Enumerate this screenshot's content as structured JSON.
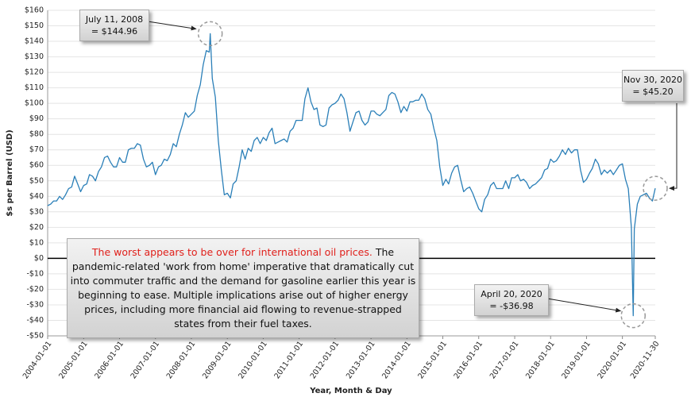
{
  "chart_data": {
    "type": "line",
    "y_label": "$s per Barrel (USD)",
    "x_label": "Year, Month & Day",
    "color": "#2a7fb8",
    "grid": true,
    "xlim": [
      "2004-01-01",
      "2020-11-30"
    ],
    "xticks": [
      "2004-01-01",
      "2005-01-01",
      "2006-01-01",
      "2007-01-01",
      "2008-01-01",
      "2009-01-01",
      "2010-01-01",
      "2011-01-01",
      "2012-01-01",
      "2013-01-01",
      "2014-01-01",
      "2015-01-01",
      "2016-01-01",
      "2017-01-01",
      "2018-01-01",
      "2019-01-01",
      "2020-01-01",
      "2020-11-30"
    ],
    "ylim": [
      -50,
      160
    ],
    "yticks": [
      {
        "value": 160,
        "label": "$160"
      },
      {
        "value": 150,
        "label": "$150"
      },
      {
        "value": 140,
        "label": "$140"
      },
      {
        "value": 130,
        "label": "$130"
      },
      {
        "value": 120,
        "label": "$120"
      },
      {
        "value": 110,
        "label": "$110"
      },
      {
        "value": 100,
        "label": "$100"
      },
      {
        "value": 90,
        "label": "$90"
      },
      {
        "value": 80,
        "label": "$80"
      },
      {
        "value": 70,
        "label": "$70"
      },
      {
        "value": 60,
        "label": "$60"
      },
      {
        "value": 50,
        "label": "$50"
      },
      {
        "value": 40,
        "label": "$40"
      },
      {
        "value": 30,
        "label": "$30"
      },
      {
        "value": 20,
        "label": "$20"
      },
      {
        "value": 10,
        "label": "$10"
      },
      {
        "value": 0,
        "label": "$0"
      },
      {
        "value": -10,
        "label": "-$10"
      },
      {
        "value": -20,
        "label": "-$20"
      },
      {
        "value": -30,
        "label": "-$30"
      },
      {
        "value": -40,
        "label": "-$40"
      },
      {
        "value": -50,
        "label": "-$50"
      }
    ],
    "x": [
      "2004-01-01",
      "2004-02-01",
      "2004-03-01",
      "2004-04-01",
      "2004-05-01",
      "2004-06-01",
      "2004-07-01",
      "2004-08-01",
      "2004-09-01",
      "2004-10-01",
      "2004-11-01",
      "2004-12-01",
      "2005-01-01",
      "2005-02-01",
      "2005-03-01",
      "2005-04-01",
      "2005-05-01",
      "2005-06-01",
      "2005-07-01",
      "2005-08-01",
      "2005-09-01",
      "2005-10-01",
      "2005-11-01",
      "2005-12-01",
      "2006-01-01",
      "2006-02-01",
      "2006-03-01",
      "2006-04-01",
      "2006-05-01",
      "2006-06-01",
      "2006-07-01",
      "2006-08-01",
      "2006-09-01",
      "2006-10-01",
      "2006-11-01",
      "2006-12-01",
      "2007-01-01",
      "2007-02-01",
      "2007-03-01",
      "2007-04-01",
      "2007-05-01",
      "2007-06-01",
      "2007-07-01",
      "2007-08-01",
      "2007-09-01",
      "2007-10-01",
      "2007-11-01",
      "2007-12-01",
      "2008-01-01",
      "2008-02-01",
      "2008-03-01",
      "2008-04-01",
      "2008-05-01",
      "2008-06-01",
      "2008-07-01",
      "2008-07-11",
      "2008-08-01",
      "2008-09-01",
      "2008-10-01",
      "2008-11-01",
      "2008-12-01",
      "2009-01-01",
      "2009-02-01",
      "2009-03-01",
      "2009-04-01",
      "2009-05-01",
      "2009-06-01",
      "2009-07-01",
      "2009-08-01",
      "2009-09-01",
      "2009-10-01",
      "2009-11-01",
      "2009-12-01",
      "2010-01-01",
      "2010-02-01",
      "2010-03-01",
      "2010-04-01",
      "2010-05-01",
      "2010-06-01",
      "2010-07-01",
      "2010-08-01",
      "2010-09-01",
      "2010-10-01",
      "2010-11-01",
      "2010-12-01",
      "2011-01-01",
      "2011-02-01",
      "2011-03-01",
      "2011-04-01",
      "2011-05-01",
      "2011-06-01",
      "2011-07-01",
      "2011-08-01",
      "2011-09-01",
      "2011-10-01",
      "2011-11-01",
      "2011-12-01",
      "2012-01-01",
      "2012-02-01",
      "2012-03-01",
      "2012-04-01",
      "2012-05-01",
      "2012-06-01",
      "2012-07-01",
      "2012-08-01",
      "2012-09-01",
      "2012-10-01",
      "2012-11-01",
      "2012-12-01",
      "2013-01-01",
      "2013-02-01",
      "2013-03-01",
      "2013-04-01",
      "2013-05-01",
      "2013-06-01",
      "2013-07-01",
      "2013-08-01",
      "2013-09-01",
      "2013-10-01",
      "2013-11-01",
      "2013-12-01",
      "2014-01-01",
      "2014-02-01",
      "2014-03-01",
      "2014-04-01",
      "2014-05-01",
      "2014-06-01",
      "2014-07-01",
      "2014-08-01",
      "2014-09-01",
      "2014-10-01",
      "2014-11-01",
      "2014-12-01",
      "2015-01-01",
      "2015-02-01",
      "2015-03-01",
      "2015-04-01",
      "2015-05-01",
      "2015-06-01",
      "2015-07-01",
      "2015-08-01",
      "2015-09-01",
      "2015-10-01",
      "2015-11-01",
      "2015-12-01",
      "2016-01-01",
      "2016-02-01",
      "2016-03-01",
      "2016-04-01",
      "2016-05-01",
      "2016-06-01",
      "2016-07-01",
      "2016-08-01",
      "2016-09-01",
      "2016-10-01",
      "2016-11-01",
      "2016-12-01",
      "2017-01-01",
      "2017-02-01",
      "2017-03-01",
      "2017-04-01",
      "2017-05-01",
      "2017-06-01",
      "2017-07-01",
      "2017-08-01",
      "2017-09-01",
      "2017-10-01",
      "2017-11-01",
      "2017-12-01",
      "2018-01-01",
      "2018-02-01",
      "2018-03-01",
      "2018-04-01",
      "2018-05-01",
      "2018-06-01",
      "2018-07-01",
      "2018-08-01",
      "2018-09-01",
      "2018-10-01",
      "2018-11-01",
      "2018-12-01",
      "2019-01-01",
      "2019-02-01",
      "2019-03-01",
      "2019-04-01",
      "2019-05-01",
      "2019-06-01",
      "2019-07-01",
      "2019-08-01",
      "2019-09-01",
      "2019-10-01",
      "2019-11-01",
      "2019-12-01",
      "2020-01-01",
      "2020-02-01",
      "2020-03-01",
      "2020-04-01",
      "2020-04-20",
      "2020-05-01",
      "2020-06-01",
      "2020-07-01",
      "2020-08-01",
      "2020-09-01",
      "2020-10-01",
      "2020-11-01",
      "2020-11-30"
    ],
    "values": [
      34,
      35,
      37,
      37,
      40,
      38,
      41,
      45,
      46,
      53,
      48,
      43,
      47,
      48,
      54,
      53,
      50,
      56,
      59,
      65,
      66,
      62,
      59,
      59,
      65,
      62,
      62,
      70,
      71,
      71,
      74,
      73,
      64,
      59,
      60,
      62,
      54,
      59,
      60,
      64,
      63,
      67,
      74,
      72,
      80,
      86,
      94,
      91,
      93,
      95,
      105,
      112,
      125,
      134,
      133,
      144.96,
      116,
      104,
      76,
      57,
      41,
      42,
      39,
      48,
      50,
      59,
      70,
      64,
      71,
      69,
      76,
      78,
      74,
      78,
      76,
      81,
      84,
      74,
      75,
      76,
      77,
      75,
      82,
      84,
      89,
      89,
      89,
      103,
      110,
      101,
      96,
      97,
      86,
      85,
      86,
      97,
      99,
      100,
      102,
      106,
      103,
      94,
      82,
      88,
      94,
      95,
      89,
      86,
      88,
      95,
      95,
      93,
      92,
      94,
      96,
      105,
      107,
      106,
      101,
      94,
      98,
      95,
      101,
      101,
      102,
      102,
      106,
      103,
      96,
      93,
      84,
      76,
      59,
      47,
      51,
      48,
      55,
      59,
      60,
      51,
      43,
      45,
      46,
      42,
      37,
      32,
      30,
      38,
      41,
      47,
      49,
      45,
      45,
      45,
      50,
      45,
      52,
      52,
      54,
      50,
      51,
      49,
      45,
      47,
      48,
      50,
      52,
      57,
      58,
      64,
      62,
      63,
      66,
      70,
      67,
      71,
      68,
      70,
      70,
      57,
      49,
      51,
      55,
      58,
      64,
      61,
      54,
      57,
      55,
      57,
      54,
      57,
      60,
      61,
      51,
      45,
      20,
      -36.98,
      19,
      35,
      40,
      41,
      42,
      39,
      37,
      45.2
    ],
    "annotations": [
      {
        "text": [
          "July 11, 2008",
          "= $144.96"
        ],
        "x": "2008-07-11",
        "y": 144.96
      },
      {
        "text": [
          "Nov 30, 2020",
          "= $45.20"
        ],
        "x": "2020-11-30",
        "y": 45.2
      },
      {
        "text": [
          "April 20, 2020",
          "= -$36.98"
        ],
        "x": "2020-04-20",
        "y": -36.98
      }
    ],
    "note": {
      "highlight": "The worst appears to be over for international oil prices.",
      "body": " The pandemic-related 'work from home' imperative that dramatically cut into commuter traffic and the demand for gasoline earlier this year is beginning to ease. Multiple implications arise out of higher energy prices, including more financial aid flowing to revenue-strapped states from their fuel taxes."
    }
  }
}
